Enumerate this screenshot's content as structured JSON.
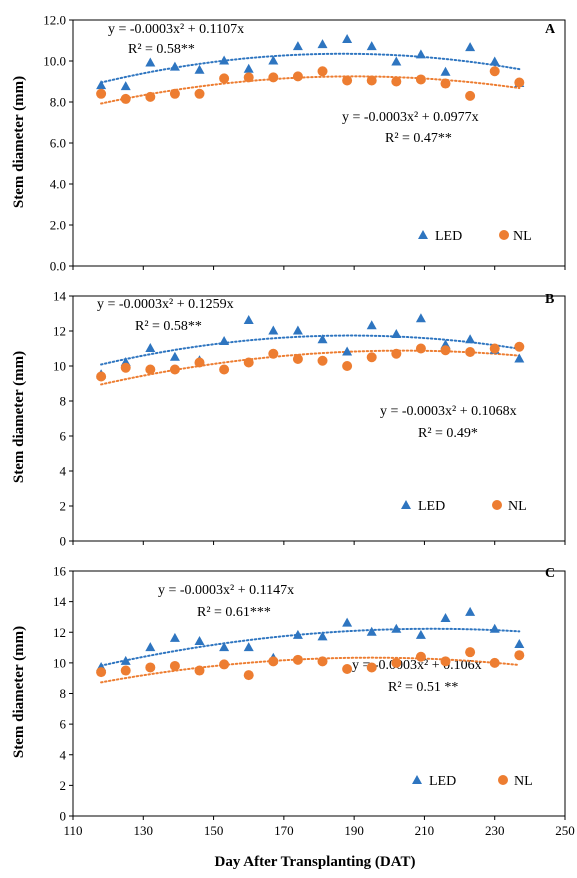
{
  "colors": {
    "led": "#2E75C0",
    "nl": "#ED7D31"
  },
  "xaxis": {
    "label": "Day After Transplanting (DAT)",
    "lim": [
      110,
      250
    ],
    "ticks": [
      110,
      130,
      150,
      170,
      190,
      210,
      230,
      250
    ],
    "tick_labels": [
      "110",
      "130",
      "150",
      "170",
      "190",
      "210",
      "230",
      "250"
    ]
  },
  "chart_data": [
    {
      "type": "scatter",
      "panel": "A",
      "ylabel": "Stem diameter (mm)",
      "ylim": [
        0,
        12
      ],
      "yticks": [
        0,
        2,
        4,
        6,
        8,
        10,
        12
      ],
      "ytick_labels": [
        "0.0",
        "2.0",
        "4.0",
        "6.0",
        "8.0",
        "10.0",
        "12.0"
      ],
      "series": [
        {
          "name": "LED",
          "x": [
            118,
            125,
            132,
            139,
            146,
            153,
            160,
            167,
            174,
            181,
            188,
            195,
            202,
            209,
            216,
            223,
            230,
            237
          ],
          "y": [
            8.8,
            8.75,
            9.9,
            9.7,
            9.55,
            10.0,
            9.6,
            10.0,
            10.7,
            10.8,
            11.05,
            10.7,
            9.95,
            10.3,
            9.45,
            10.65,
            9.95,
            8.9
          ],
          "equation": "y = -0.0003x² + 0.1107x",
          "r2": "R² = 0.58**"
        },
        {
          "name": "NL",
          "x": [
            118,
            125,
            132,
            139,
            146,
            153,
            160,
            167,
            174,
            181,
            188,
            195,
            202,
            209,
            216,
            223,
            230,
            237
          ],
          "y": [
            8.4,
            8.15,
            8.25,
            8.4,
            8.4,
            9.15,
            9.2,
            9.2,
            9.25,
            9.5,
            9.05,
            9.05,
            9.0,
            9.1,
            8.9,
            8.3,
            9.5,
            8.95
          ],
          "equation": "y = -0.0003x² + 0.0977x",
          "r2": "R² = 0.47**"
        }
      ]
    },
    {
      "type": "scatter",
      "panel": "B",
      "ylabel": "Stem diameter (mm)",
      "ylim": [
        0,
        14
      ],
      "yticks": [
        0,
        2,
        4,
        6,
        8,
        10,
        12,
        14
      ],
      "ytick_labels": [
        "0",
        "2",
        "4",
        "6",
        "8",
        "10",
        "12",
        "14"
      ],
      "series": [
        {
          "name": "LED",
          "x": [
            118,
            125,
            132,
            139,
            146,
            153,
            160,
            167,
            174,
            181,
            188,
            195,
            202,
            209,
            216,
            223,
            230,
            237
          ],
          "y": [
            9.5,
            10.2,
            11.0,
            10.5,
            10.3,
            11.4,
            12.6,
            12.0,
            12.0,
            11.5,
            10.8,
            12.3,
            11.8,
            12.7,
            11.2,
            11.5,
            10.9,
            10.4
          ],
          "equation": "y = -0.0003x² + 0.1259x",
          "r2": "R² = 0.58**"
        },
        {
          "name": "NL",
          "x": [
            118,
            125,
            132,
            139,
            146,
            153,
            160,
            167,
            174,
            181,
            188,
            195,
            202,
            209,
            216,
            223,
            230,
            237
          ],
          "y": [
            9.4,
            9.9,
            9.8,
            9.8,
            10.2,
            9.8,
            10.2,
            10.7,
            10.4,
            10.3,
            10.0,
            10.5,
            10.7,
            11.0,
            10.9,
            10.8,
            11.0,
            11.1
          ],
          "equation": "y = -0.0003x² + 0.1068x",
          "r2": "R² = 0.49*"
        }
      ]
    },
    {
      "type": "scatter",
      "panel": "C",
      "ylabel": "Stem diameter (mm)",
      "ylim": [
        0,
        16
      ],
      "yticks": [
        0,
        2,
        4,
        6,
        8,
        10,
        12,
        14,
        16
      ],
      "ytick_labels": [
        "0",
        "2",
        "4",
        "6",
        "8",
        "10",
        "12",
        "14",
        "16"
      ],
      "series": [
        {
          "name": "LED",
          "x": [
            118,
            125,
            132,
            139,
            146,
            153,
            160,
            167,
            174,
            181,
            188,
            195,
            202,
            209,
            216,
            223,
            230,
            237
          ],
          "y": [
            9.7,
            10.1,
            11.0,
            11.6,
            11.4,
            11.0,
            11.0,
            10.3,
            11.8,
            11.7,
            12.6,
            12.0,
            12.2,
            11.8,
            12.9,
            13.3,
            12.2,
            11.2
          ],
          "equation": "y = -0.0003x² + 0.1147x",
          "r2": "R² = 0.61***"
        },
        {
          "name": "NL",
          "x": [
            118,
            125,
            132,
            139,
            146,
            153,
            160,
            167,
            174,
            181,
            188,
            195,
            202,
            209,
            216,
            223,
            230,
            237
          ],
          "y": [
            9.4,
            9.5,
            9.7,
            9.8,
            9.5,
            9.9,
            9.2,
            10.1,
            10.2,
            10.1,
            9.6,
            9.7,
            10.0,
            10.4,
            10.1,
            10.7,
            10.0,
            10.5
          ],
          "equation": "y = -0.0003x² + 0.106x",
          "r2": "R² = 0.51 **"
        }
      ]
    }
  ]
}
